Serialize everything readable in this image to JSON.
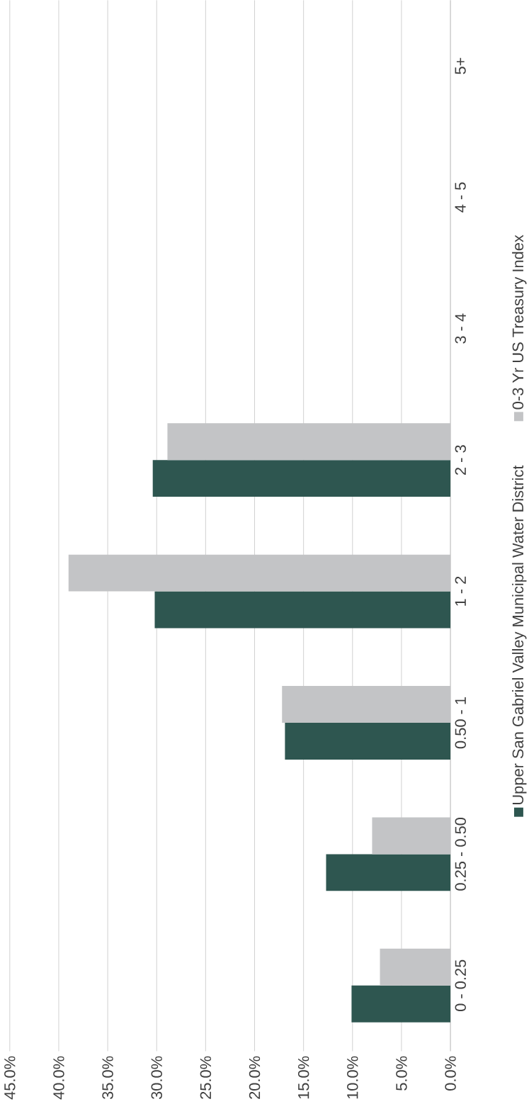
{
  "chart_data": {
    "type": "bar",
    "orientation": "horizontal",
    "categories": [
      "5+",
      "4 - 5",
      "3 - 4",
      "2 - 3",
      "1 - 2",
      "0.50 - 1",
      "0.25 - 0.50",
      "0 - 0.25"
    ],
    "series": [
      {
        "name": "Upper San Gabriel Valley Municipal Water District",
        "color": "#2e5650",
        "values": [
          0,
          0,
          0,
          30.4,
          30.2,
          16.9,
          12.7,
          10.1
        ]
      },
      {
        "name": "0-3 Yr US Treasury Index",
        "color": "#c3c4c6",
        "values": [
          0,
          0,
          0,
          28.9,
          39.0,
          17.2,
          8.0,
          7.2
        ]
      }
    ],
    "xlim": [
      45,
      0
    ],
    "xticks": [
      {
        "value": 0,
        "label": "0.0%"
      },
      {
        "value": 5,
        "label": "5.0%"
      },
      {
        "value": 10,
        "label": "10.0%"
      },
      {
        "value": 15,
        "label": "15.0%"
      },
      {
        "value": 20,
        "label": "20.0%"
      },
      {
        "value": 25,
        "label": "25.0%"
      },
      {
        "value": 30,
        "label": "30.0%"
      },
      {
        "value": 35,
        "label": "35.0%"
      },
      {
        "value": 40,
        "label": "40.0%"
      },
      {
        "value": 45,
        "label": "45.0%"
      }
    ],
    "grid": "x",
    "legend": "right"
  }
}
